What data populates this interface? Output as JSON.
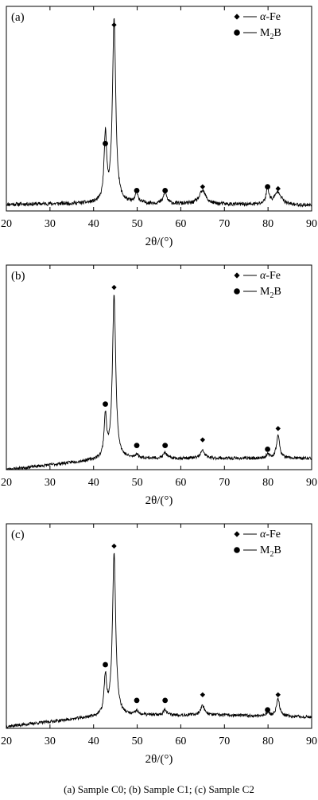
{
  "caption": "(a) Sample C0; (b) Sample C1; (c) Sample C2",
  "colors": {
    "line": "#000000",
    "background": "#ffffff"
  },
  "chart_data": [
    {
      "type": "line",
      "panel_label": "(a)",
      "xlabel": "2θ/(°)",
      "ylabel": "",
      "xlim": [
        20,
        90
      ],
      "ylim": [
        0,
        1
      ],
      "xticks": [
        20,
        30,
        40,
        50,
        60,
        70,
        80,
        90
      ],
      "grid": false,
      "legend_position": "top-right",
      "legend": [
        {
          "marker": "diamond",
          "label_pre": "α",
          "label_post": "-Fe"
        },
        {
          "marker": "circle",
          "label_pre": "M",
          "label_sub": "2",
          "label_post": "B"
        }
      ],
      "baseline": {
        "x": [
          20,
          40,
          50,
          70,
          90
        ],
        "y": [
          0.035,
          0.04,
          0.04,
          0.035,
          0.03
        ]
      },
      "peaks": [
        {
          "x": 42.7,
          "y": 0.35,
          "width": 0.35
        },
        {
          "x": 44.7,
          "y": 0.98,
          "width": 0.45
        },
        {
          "x": 49.9,
          "y": 0.06,
          "width": 0.35
        },
        {
          "x": 56.4,
          "y": 0.06,
          "width": 0.45
        },
        {
          "x": 65.0,
          "y": 0.07,
          "width": 0.9
        },
        {
          "x": 79.9,
          "y": 0.08,
          "width": 0.45
        },
        {
          "x": 82.3,
          "y": 0.07,
          "width": 0.9
        }
      ],
      "markers": [
        {
          "x": 42.7,
          "y": 0.35,
          "phase": "M2B"
        },
        {
          "x": 44.7,
          "y": 0.98,
          "phase": "α-Fe"
        },
        {
          "x": 49.9,
          "y": 0.1,
          "phase": "M2B"
        },
        {
          "x": 56.4,
          "y": 0.1,
          "phase": "M2B"
        },
        {
          "x": 65.0,
          "y": 0.12,
          "phase": "α-Fe"
        },
        {
          "x": 79.9,
          "y": 0.12,
          "phase": "M2B"
        },
        {
          "x": 82.3,
          "y": 0.11,
          "phase": "α-Fe"
        }
      ],
      "noise": 0.01,
      "seed": 11
    },
    {
      "type": "line",
      "panel_label": "(b)",
      "xlabel": "2θ/(°)",
      "ylabel": "",
      "xlim": [
        20,
        90
      ],
      "ylim": [
        0,
        1
      ],
      "xticks": [
        20,
        30,
        40,
        50,
        60,
        70,
        80,
        90
      ],
      "grid": false,
      "legend_position": "top-right",
      "legend": [
        {
          "marker": "diamond",
          "label_pre": "α",
          "label_post": "-Fe"
        },
        {
          "marker": "circle",
          "label_pre": "M",
          "label_sub": "2",
          "label_post": "B"
        }
      ],
      "baseline": {
        "x": [
          20,
          28,
          40,
          50,
          70,
          90
        ],
        "y": [
          0.0,
          0.02,
          0.05,
          0.06,
          0.06,
          0.06
        ]
      },
      "peaks": [
        {
          "x": 42.7,
          "y": 0.22,
          "width": 0.35
        },
        {
          "x": 44.7,
          "y": 0.87,
          "width": 0.45
        },
        {
          "x": 49.9,
          "y": 0.02,
          "width": 0.35
        },
        {
          "x": 56.4,
          "y": 0.03,
          "width": 0.45
        },
        {
          "x": 65.0,
          "y": 0.04,
          "width": 0.6
        },
        {
          "x": 79.9,
          "y": 0.02,
          "width": 0.45
        },
        {
          "x": 82.3,
          "y": 0.12,
          "width": 0.45
        }
      ],
      "markers": [
        {
          "x": 42.7,
          "y": 0.34,
          "phase": "M2B"
        },
        {
          "x": 44.7,
          "y": 0.96,
          "phase": "α-Fe"
        },
        {
          "x": 49.9,
          "y": 0.12,
          "phase": "M2B"
        },
        {
          "x": 56.4,
          "y": 0.12,
          "phase": "M2B"
        },
        {
          "x": 65.0,
          "y": 0.15,
          "phase": "α-Fe"
        },
        {
          "x": 79.9,
          "y": 0.1,
          "phase": "M2B"
        },
        {
          "x": 82.3,
          "y": 0.21,
          "phase": "α-Fe"
        }
      ],
      "noise": 0.008,
      "seed": 23
    },
    {
      "type": "line",
      "panel_label": "(c)",
      "xlabel": "2θ/(°)",
      "ylabel": "",
      "xlim": [
        20,
        90
      ],
      "ylim": [
        0,
        1
      ],
      "xticks": [
        20,
        30,
        40,
        50,
        60,
        70,
        80,
        90
      ],
      "grid": false,
      "legend_position": "top-right",
      "legend": [
        {
          "marker": "diamond",
          "label_pre": "α",
          "label_post": "-Fe"
        },
        {
          "marker": "circle",
          "label_pre": "M",
          "label_sub": "2",
          "label_post": "B"
        }
      ],
      "baseline": {
        "x": [
          20,
          28,
          40,
          50,
          70,
          90
        ],
        "y": [
          0.01,
          0.03,
          0.06,
          0.07,
          0.07,
          0.06
        ]
      },
      "peaks": [
        {
          "x": 42.7,
          "y": 0.2,
          "width": 0.35
        },
        {
          "x": 44.7,
          "y": 0.86,
          "width": 0.45
        },
        {
          "x": 49.9,
          "y": 0.02,
          "width": 0.35
        },
        {
          "x": 56.4,
          "y": 0.03,
          "width": 0.45
        },
        {
          "x": 65.0,
          "y": 0.05,
          "width": 0.6
        },
        {
          "x": 79.9,
          "y": 0.02,
          "width": 0.45
        },
        {
          "x": 82.3,
          "y": 0.09,
          "width": 0.45
        }
      ],
      "markers": [
        {
          "x": 42.7,
          "y": 0.33,
          "phase": "M2B"
        },
        {
          "x": 44.7,
          "y": 0.96,
          "phase": "α-Fe"
        },
        {
          "x": 49.9,
          "y": 0.14,
          "phase": "M2B"
        },
        {
          "x": 56.4,
          "y": 0.14,
          "phase": "M2B"
        },
        {
          "x": 65.0,
          "y": 0.17,
          "phase": "α-Fe"
        },
        {
          "x": 79.9,
          "y": 0.09,
          "phase": "M2B"
        },
        {
          "x": 82.3,
          "y": 0.17,
          "phase": "α-Fe"
        }
      ],
      "noise": 0.008,
      "seed": 37
    }
  ]
}
